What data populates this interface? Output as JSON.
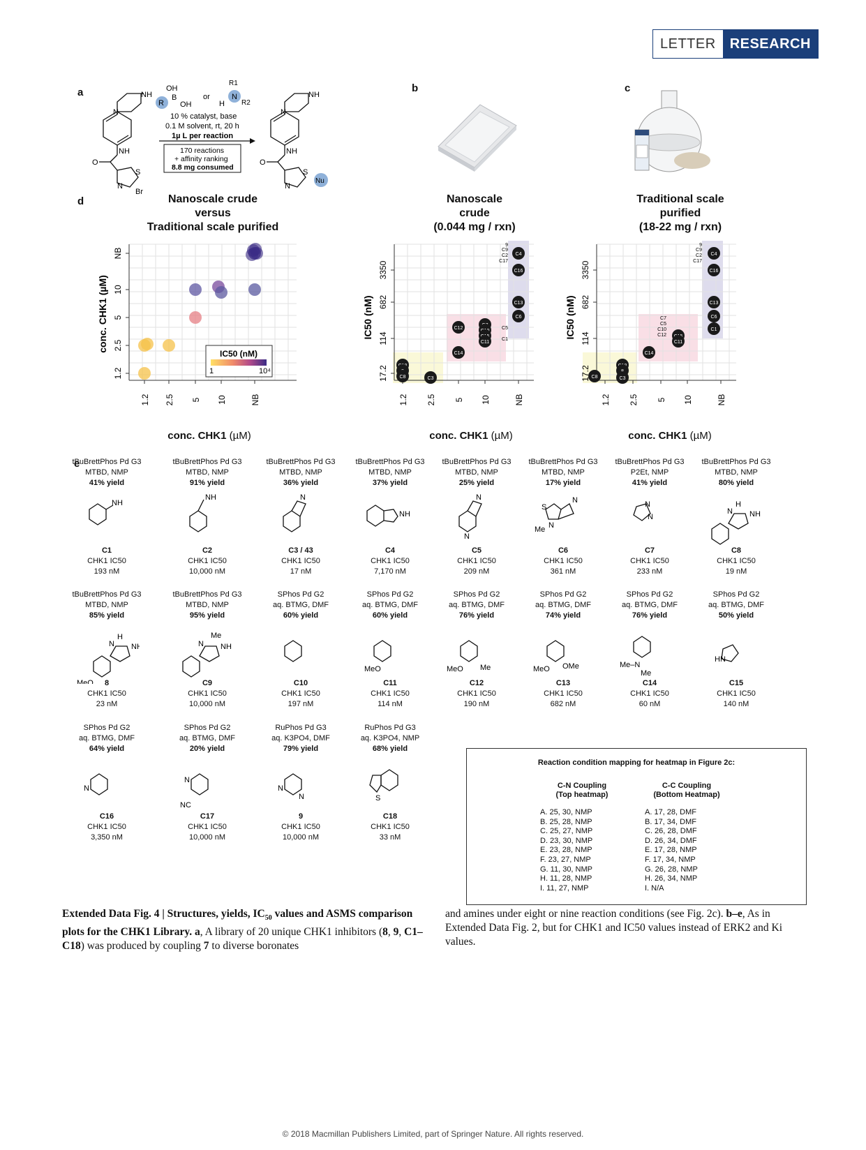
{
  "header": {
    "letter": "LETTER",
    "research": "RESEARCH"
  },
  "panels": {
    "a": "a",
    "b": "b",
    "c": "c",
    "d": "d",
    "e": "e"
  },
  "scheme": {
    "reagent_boronic_oh1": "OH",
    "reagent_boronic_b": "B",
    "reagent_boronic_oh2": "OH",
    "reagent_r": "R",
    "or": "or",
    "amine_r1": "R1",
    "amine_r2": "R2",
    "amine_n": "N",
    "amine_h": "H",
    "line1": "10 % catalyst, base",
    "line2": "0.1 M solvent, rt, 20 h",
    "line3": "1µ L per reaction",
    "box1": "170 reactions",
    "box2": "+ affinity ranking",
    "box3": "8.8 mg consumed",
    "nu": "Nu",
    "br": "Br",
    "nh": "NH",
    "n": "N",
    "s": "S",
    "o": "O"
  },
  "plot_titles": {
    "left": [
      "Nanoscale crude",
      "versus",
      "Traditional scale purified"
    ],
    "mid": [
      "Nanoscale",
      "crude",
      "(0.044 mg / rxn)"
    ],
    "right": [
      "Traditional scale",
      "purified",
      "(18-22 mg / rxn)"
    ]
  },
  "xlabel": {
    "bold": "conc. CHK1",
    "unit": " (µM)"
  },
  "chart_data": [
    {
      "type": "scatter",
      "xlabel": "conc. CHK1 (µM)",
      "ylabel": "conc. CHK1 (µM)",
      "x_ticks": [
        "1.2",
        "2.5",
        "5",
        "10",
        "NB"
      ],
      "y_ticks": [
        "1.2",
        "2.5",
        "5",
        "10",
        "NB"
      ],
      "legend": {
        "title": "IC50 (nM)",
        "min": "1",
        "max": "10⁴",
        "placement": "bottom-right"
      },
      "points": [
        {
          "x": 1.2,
          "y": 1.2,
          "ic50": 19,
          "color": "#f5c24a"
        },
        {
          "x": 1.2,
          "y": 2.5,
          "ic50": 17,
          "color": "#f5c24a"
        },
        {
          "x": 1.2,
          "y": 2.5,
          "ic50": 33,
          "color": "#f5c24a"
        },
        {
          "x": 2.5,
          "y": 2.5,
          "ic50": 23,
          "color": "#f5c24a"
        },
        {
          "x": 5,
          "y": 5,
          "ic50": 190,
          "color": "#e57f84"
        },
        {
          "x": 5,
          "y": 10,
          "ic50": 682,
          "color": "#5f58a3"
        },
        {
          "x": 10,
          "y": 10,
          "ic50": 193,
          "color": "#7a4b9e"
        },
        {
          "x": 10,
          "y": 10,
          "ic50": 209,
          "color": "#5e5aa0"
        },
        {
          "x": "NB",
          "y": 10,
          "ic50": 3350,
          "color": "#5a5aa0"
        },
        {
          "x": "NB",
          "y": "NB",
          "ic50": 10000,
          "color": "#3b2c85"
        }
      ]
    },
    {
      "type": "scatter",
      "xlabel": "conc. CHK1 (µM)",
      "ylabel": "IC50 (nM)",
      "x_ticks": [
        "1.2",
        "2.5",
        "5",
        "10",
        "NB"
      ],
      "y_ticks": [
        "17.2",
        "114",
        "682",
        "3350"
      ],
      "points": [
        {
          "label": "C18",
          "x": 1.2
        },
        {
          "label": "8",
          "x": 1.2
        },
        {
          "label": "C8",
          "x": 1.2
        },
        {
          "label": "C3",
          "x": 2.5
        },
        {
          "label": "C14",
          "x": 5
        },
        {
          "label": "C12",
          "x": 5
        },
        {
          "label": "C7",
          "x": 10
        },
        {
          "label": "C10",
          "x": 10
        },
        {
          "label": "C15",
          "x": 10
        },
        {
          "label": "C11",
          "x": 10
        },
        {
          "label": "C13",
          "x": "NB"
        },
        {
          "label": "C6",
          "x": "NB"
        },
        {
          "label": "C5",
          "x": "NB"
        },
        {
          "label": "C1",
          "x": "NB"
        },
        {
          "label": "C16",
          "x": "NB"
        },
        {
          "label": "C4",
          "x": "NB"
        },
        {
          "label": "9",
          "x": "NB"
        },
        {
          "label": "C9",
          "x": "NB"
        },
        {
          "label": "C2",
          "x": "NB"
        },
        {
          "label": "C17",
          "x": "NB"
        }
      ]
    },
    {
      "type": "scatter",
      "xlabel": "conc. CHK1 (µM)",
      "ylabel": "IC50 (nM)",
      "x_ticks": [
        "1.2",
        "2.5",
        "5",
        "10",
        "NB"
      ],
      "y_ticks": [
        "17.2",
        "114",
        "682",
        "3350"
      ],
      "points": [
        {
          "label": "C8",
          "x": 1.2
        },
        {
          "label": "C18",
          "x": 2.5
        },
        {
          "label": "8",
          "x": 2.5
        },
        {
          "label": "C3",
          "x": 2.5
        },
        {
          "label": "C14",
          "x": 5
        },
        {
          "label": "C7",
          "x": 10
        },
        {
          "label": "C5",
          "x": 10
        },
        {
          "label": "C10",
          "x": 10
        },
        {
          "label": "C12",
          "x": 10
        },
        {
          "label": "C15",
          "x": 10
        },
        {
          "label": "C11",
          "x": 10
        },
        {
          "label": "C13",
          "x": "NB"
        },
        {
          "label": "C6",
          "x": "NB"
        },
        {
          "label": "C1",
          "x": "NB"
        },
        {
          "label": "C16",
          "x": "NB"
        },
        {
          "label": "C4",
          "x": "NB"
        },
        {
          "label": "9",
          "x": "NB"
        },
        {
          "label": "C9",
          "x": "NB"
        },
        {
          "label": "C2",
          "x": "NB"
        },
        {
          "label": "C17",
          "x": "NB"
        }
      ]
    }
  ],
  "compounds": [
    {
      "cat": "tBuBrettPhos Pd G3",
      "cond": "MTBD, NMP",
      "yield": "41% yield",
      "id": "C1",
      "ic": "CHK1 IC50",
      "val": "193 nM",
      "mol": "aniline"
    },
    {
      "cat": "tBuBrettPhos Pd G3",
      "cond": "MTBD, NMP",
      "yield": "91% yield",
      "id": "C2",
      "ic": "CHK1 IC50",
      "val": "10,000 nM",
      "mol": "benzylamine"
    },
    {
      "cat": "tBuBrettPhos Pd G3",
      "cond": "MTBD, NMP",
      "yield": "36% yield",
      "id": "C3 / 43",
      "ic": "CHK1 IC50",
      "val": "17 nM",
      "mol": "isoindoline"
    },
    {
      "cat": "tBuBrettPhos Pd G3",
      "cond": "MTBD, NMP",
      "yield": "37% yield",
      "id": "C4",
      "ic": "CHK1 IC50",
      "val": "7,170 nM",
      "mol": "aminoindane"
    },
    {
      "cat": "tBuBrettPhos Pd G3",
      "cond": "MTBD, NMP",
      "yield": "25% yield",
      "id": "C5",
      "ic": "CHK1 IC50",
      "val": "209 nM",
      "mol": "azaisoindoline"
    },
    {
      "cat": "tBuBrettPhos Pd G3",
      "cond": "MTBD, NMP",
      "yield": "17% yield",
      "id": "C6",
      "ic": "CHK1 IC50",
      "val": "361 nM",
      "mol": "thiazole"
    },
    {
      "cat": "tBuBrettPhos Pd G3",
      "cond": "P2Et, NMP",
      "yield": "41% yield",
      "id": "C7",
      "ic": "CHK1 IC50",
      "val": "233 nM",
      "mol": "pyrazole"
    },
    {
      "cat": "tBuBrettPhos Pd G3",
      "cond": "MTBD, NMP",
      "yield": "80% yield",
      "id": "C8",
      "ic": "CHK1 IC50",
      "val": "19 nM",
      "mol": "phenylpyrazole"
    },
    {
      "cat": "tBuBrettPhos Pd G3",
      "cond": "MTBD, NMP",
      "yield": "85% yield",
      "id": "8",
      "ic": "CHK1 IC50",
      "val": "23 nM",
      "mol": "methoxyphenylpyrazole"
    },
    {
      "cat": "tBuBrettPhos Pd G3",
      "cond": "MTBD, NMP",
      "yield": "95% yield",
      "id": "C9",
      "ic": "CHK1 IC50",
      "val": "10,000 nM",
      "mol": "methylphenylpyrazole"
    },
    {
      "cat": "SPhos Pd G2",
      "cond": "aq. BTMG, DMF",
      "yield": "60% yield",
      "id": "C10",
      "ic": "CHK1 IC50",
      "val": "197 nM",
      "mol": "phenyl"
    },
    {
      "cat": "SPhos Pd G2",
      "cond": "aq. BTMG, DMF",
      "yield": "60% yield",
      "id": "C11",
      "ic": "CHK1 IC50",
      "val": "114 nM",
      "mol": "methoxyphenyl"
    },
    {
      "cat": "SPhos Pd G2",
      "cond": "aq. BTMG, DMF",
      "yield": "76% yield",
      "id": "C12",
      "ic": "CHK1 IC50",
      "val": "190 nM",
      "mol": "methoxymethylphenyl"
    },
    {
      "cat": "SPhos Pd G2",
      "cond": "aq. BTMG, DMF",
      "yield": "74% yield",
      "id": "C13",
      "ic": "CHK1 IC50",
      "val": "682 nM",
      "mol": "dimethoxyphenyl"
    },
    {
      "cat": "SPhos Pd G2",
      "cond": "aq. BTMG, DMF",
      "yield": "76% yield",
      "id": "C14",
      "ic": "CHK1 IC50",
      "val": "60 nM",
      "mol": "dimethylaminophenyl"
    },
    {
      "cat": "SPhos Pd G2",
      "cond": "aq. BTMG, DMF",
      "yield": "50% yield",
      "id": "C15",
      "ic": "CHK1 IC50",
      "val": "140 nM",
      "mol": "pyrrole"
    },
    {
      "cat": "SPhos Pd G2",
      "cond": "aq. BTMG, DMF",
      "yield": "64% yield",
      "id": "C16",
      "ic": "CHK1 IC50",
      "val": "3,350 nM",
      "mol": "pyridine"
    },
    {
      "cat": "SPhos Pd G2",
      "cond": "aq. BTMG, DMF",
      "yield": "20% yield",
      "id": "C17",
      "ic": "CHK1 IC50",
      "val": "10,000 nM",
      "mol": "cyanopyridine"
    },
    {
      "cat": "RuPhos Pd G3",
      "cond": "aq. K3PO4, DMF",
      "yield": "79% yield",
      "id": "9",
      "ic": "CHK1 IC50",
      "val": "10,000 nM",
      "mol": "pyrimidine"
    },
    {
      "cat": "RuPhos Pd G3",
      "cond": "aq. K3PO4, NMP",
      "yield": "68% yield",
      "id": "C18",
      "ic": "CHK1 IC50",
      "val": "33 nM",
      "mol": "benzothiophene"
    }
  ],
  "mapping": {
    "title": "Reaction condition mapping for heatmap in Figure 2c:",
    "cn_head1": "C-N Coupling",
    "cn_head2": "(Top heatmap)",
    "cc_head1": "C-C Coupling",
    "cc_head2": "(Bottom Heatmap)",
    "cn": [
      "A. 25, 30, NMP",
      "B. 25, 28, NMP",
      "C. 25, 27, NMP",
      "D. 23, 30, NMP",
      "E. 23, 28, NMP",
      "F. 23, 27, NMP",
      "G. 11, 30, NMP",
      "H. 11, 28, NMP",
      "I. 11, 27, NMP"
    ],
    "cc": [
      "A. 17, 28, DMF",
      "B. 17, 34, DMF",
      "C. 26, 28, DMF",
      "D. 26, 34, DMF",
      "E. 17, 28, NMP",
      "F. 17, 34, NMP",
      "G. 26, 28, NMP",
      "H. 26, 34, NMP",
      "I. N/A"
    ]
  },
  "caption": {
    "left_bold": "Extended Data Fig. 4 | Structures, yields, IC50 values and ASMS comparison plots for the CHK1 Library.",
    "left_text1": "a",
    "left_text2": ", A library of 20 unique CHK1 inhibitors (",
    "left_b8": "8",
    "left_b9": "9",
    "left_bC": "C1–C18",
    "left_text3": ") was produced by coupling ",
    "left_b7": "7",
    "left_text4": " to diverse boronates",
    "right1": "and amines under eight or nine reaction conditions (see Fig. 2c). ",
    "right_b": "b–e",
    "right2": ", As in Extended Data Fig. 2, but for CHK1 and IC50 values instead of ERK2 and Ki values."
  },
  "footer": "© 2018 Macmillan Publishers Limited, part of Springer Nature. All rights reserved."
}
